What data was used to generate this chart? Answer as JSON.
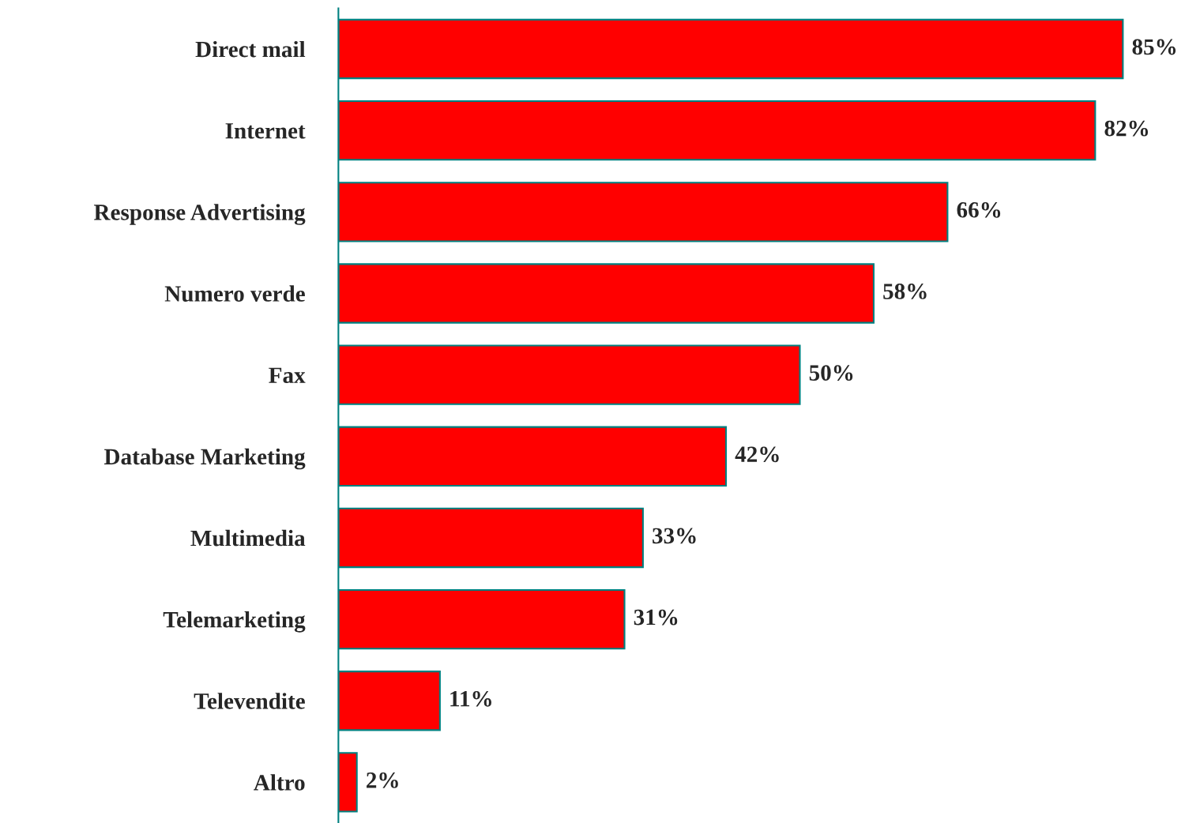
{
  "chart_data": {
    "type": "bar",
    "orientation": "horizontal",
    "categories": [
      "Direct mail",
      "Internet",
      "Response Advertising",
      "Numero verde",
      "Fax",
      "Database Marketing",
      "Multimedia",
      "Telemarketing",
      "Televendite",
      "Altro"
    ],
    "values": [
      85,
      82,
      66,
      58,
      50,
      42,
      33,
      31,
      11,
      2
    ],
    "value_labels": [
      "85%",
      "82%",
      "66%",
      "58%",
      "50%",
      "42%",
      "33%",
      "31%",
      "11%",
      "2%"
    ],
    "color": "#ff0000",
    "grid": false,
    "legend": false
  }
}
